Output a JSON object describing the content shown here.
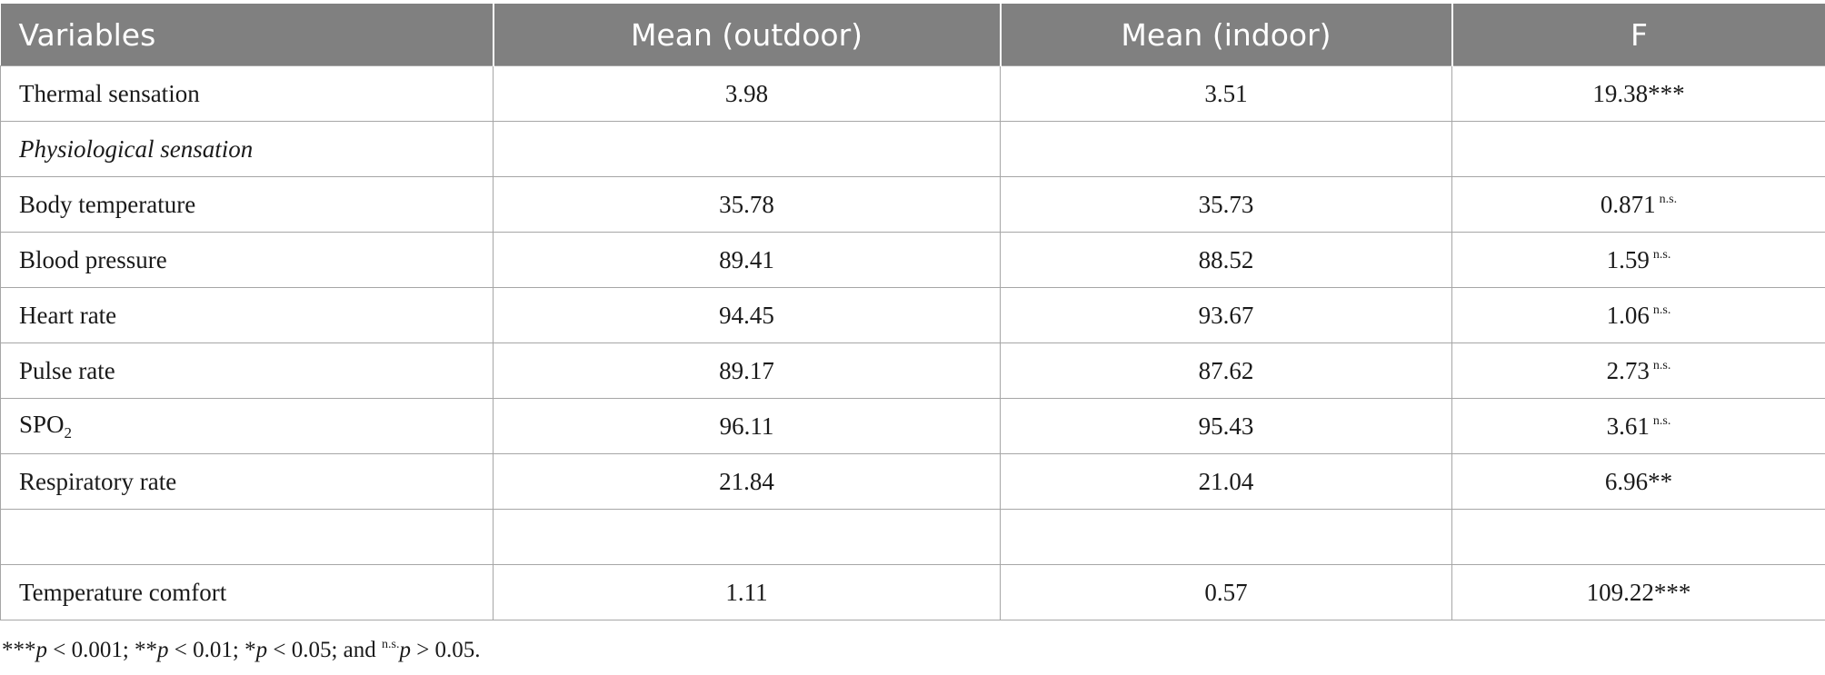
{
  "table": {
    "headers": [
      "Variables",
      "Mean (outdoor)",
      "Mean (indoor)",
      "F"
    ],
    "rows": [
      {
        "label": "Thermal sensation",
        "outdoor": "3.98",
        "indoor": "3.51",
        "f": "19.38***",
        "sig": ""
      },
      {
        "label": "Physiological sensation",
        "outdoor": "",
        "indoor": "",
        "f": "",
        "sig": ""
      },
      {
        "label": "Body temperature",
        "outdoor": "35.78",
        "indoor": "35.73",
        "f": "0.871",
        "sig": "n.s."
      },
      {
        "label": "Blood pressure",
        "outdoor": "89.41",
        "indoor": "88.52",
        "f": "1.59",
        "sig": "n.s."
      },
      {
        "label": "Heart rate",
        "outdoor": "94.45",
        "indoor": "93.67",
        "f": "1.06",
        "sig": "n.s."
      },
      {
        "label": "Pulse rate",
        "outdoor": "89.17",
        "indoor": "87.62",
        "f": "2.73",
        "sig": "n.s."
      },
      {
        "label": "SPO",
        "label_sub": "2",
        "outdoor": "96.11",
        "indoor": "95.43",
        "f": "3.61",
        "sig": "n.s."
      },
      {
        "label": "Respiratory rate",
        "outdoor": "21.84",
        "indoor": "21.04",
        "f": "6.96**",
        "sig": ""
      },
      {
        "label": "",
        "outdoor": "",
        "indoor": "",
        "f": "",
        "sig": ""
      },
      {
        "label": "Temperature comfort",
        "outdoor": "1.11",
        "indoor": "0.57",
        "f": "109.22***",
        "sig": ""
      }
    ]
  },
  "footnote": {
    "part1": "***",
    "p1": "p",
    "part2": " < 0.001; **",
    "p2": "p",
    "part3": " < 0.01; *",
    "p3": "p",
    "part4": " < 0.05; and ",
    "ns": "n.s.",
    "p4": "p",
    "part5": " > 0.05."
  }
}
